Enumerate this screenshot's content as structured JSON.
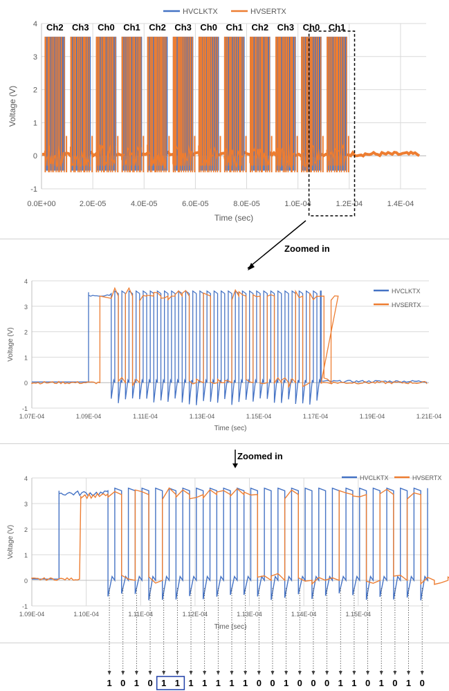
{
  "colors": {
    "clk": "#4472C4",
    "ser": "#ED7D31",
    "grid": "#D9D9D9",
    "axis": "#595959"
  },
  "chart_data": [
    {
      "type": "line",
      "x_range": [
        0,
        0.00015
      ],
      "ylim": [
        -1,
        4
      ],
      "x_ticks": [
        "0.0E+00",
        "2.0E-05",
        "4.0E-05",
        "6.0E-05",
        "8.0E-05",
        "1.0E-04",
        "1.2E-04",
        "1.4E-04"
      ],
      "y_ticks": [
        "-1",
        "0",
        "1",
        "2",
        "3",
        "4"
      ],
      "xlabel": "Time (sec)",
      "ylabel": "Voltage (V)",
      "legend": [
        "HVCLKTX",
        "HVSERTX"
      ],
      "legend_position": "top-center",
      "grid": true,
      "series": [
        {
          "name": "HVCLKTX",
          "color": "#4472C4",
          "low": 0,
          "high": 3.6
        },
        {
          "name": "HVSERTX",
          "color": "#ED7D31",
          "low": 0,
          "high": 3.6
        }
      ],
      "burst_windows": [
        {
          "label": "Ch2",
          "start": 1.2e-06,
          "end": 9.2e-06
        },
        {
          "label": "Ch3",
          "start": 1.12e-05,
          "end": 1.92e-05
        },
        {
          "label": "Ch0",
          "start": 2.12e-05,
          "end": 2.92e-05
        },
        {
          "label": "Ch1",
          "start": 3.12e-05,
          "end": 3.92e-05
        },
        {
          "label": "Ch2",
          "start": 4.12e-05,
          "end": 4.92e-05
        },
        {
          "label": "Ch3",
          "start": 5.12e-05,
          "end": 5.92e-05
        },
        {
          "label": "Ch0",
          "start": 6.12e-05,
          "end": 6.92e-05
        },
        {
          "label": "Ch1",
          "start": 7.12e-05,
          "end": 7.92e-05
        },
        {
          "label": "Ch2",
          "start": 8.12e-05,
          "end": 8.92e-05
        },
        {
          "label": "Ch3",
          "start": 9.12e-05,
          "end": 9.92e-05
        },
        {
          "label": "Ch0",
          "start": 0.0001012,
          "end": 0.0001092
        },
        {
          "label": "Ch1",
          "start": 0.0001112,
          "end": 0.0001192
        }
      ],
      "burst_labels": [
        "Ch2",
        "Ch3",
        "Ch0",
        "Ch1",
        "Ch2",
        "Ch3",
        "Ch0",
        "Ch1",
        "Ch2",
        "Ch3",
        "Ch0",
        "Ch1"
      ],
      "highlight_range": [
        0.000107,
        0.000121
      ]
    },
    {
      "type": "line",
      "x_range": [
        0.000107,
        0.000121
      ],
      "ylim": [
        -1,
        4
      ],
      "x_ticks": [
        "1.07E-04",
        "1.09E-04",
        "1.11E-04",
        "1.13E-04",
        "1.15E-04",
        "1.17E-04",
        "1.19E-04",
        "1.21E-04"
      ],
      "y_ticks": [
        "-1",
        "0",
        "1",
        "2",
        "3",
        "4"
      ],
      "xlabel": "Time (sec)",
      "ylabel": "Voltage (V)",
      "legend": [
        "HVCLKTX",
        "HVSERTX"
      ],
      "legend_position": "right",
      "grid": true,
      "clk_start": 0.000109,
      "clk_stop": 0.0001172,
      "clk_edge_start": 0.0001098,
      "clk_period": 2.5e-07,
      "ser_start": 0.0001094,
      "ser_bits": [
        1,
        0,
        1,
        0,
        1,
        1,
        1,
        1,
        1,
        1,
        1,
        0,
        0,
        1,
        0,
        0,
        0,
        1,
        1,
        0,
        1,
        0,
        1,
        0,
        0,
        0,
        1,
        0,
        1,
        1,
        0,
        1
      ]
    },
    {
      "type": "line",
      "x_range": [
        0.000109,
        0.0001163
      ],
      "ylim": [
        -1,
        4
      ],
      "x_ticks": [
        "1.09E-04",
        "1.10E-04",
        "1.11E-04",
        "1.12E-04",
        "1.13E-04",
        "1.14E-04",
        "1.15E-04"
      ],
      "y_ticks": [
        "-1",
        "0",
        "1",
        "2",
        "3",
        "4"
      ],
      "xlabel": "Time (sec)",
      "ylabel": "Voltage (V)",
      "legend": [
        "HVCLKTX",
        "HVSERTX"
      ],
      "legend_position": "top-right",
      "grid": true,
      "clk_start": 0.0001095,
      "clk_edge_start": 0.0001104,
      "clk_period": 2.5e-07,
      "ser_start": 0.0001099,
      "ser_bits": [
        1,
        0,
        1,
        0,
        1,
        1,
        1,
        1,
        1,
        1,
        1,
        0,
        0,
        1,
        0,
        0,
        0,
        1,
        1,
        0,
        1,
        0,
        1,
        0,
        0,
        0
      ],
      "decoded_bits": [
        "1",
        "0",
        "1",
        "0",
        "1",
        "1",
        "1",
        "1",
        "1",
        "1",
        "1",
        "0",
        "0",
        "1",
        "0",
        "0",
        "0",
        "1",
        "1",
        "0",
        "1",
        "0",
        "1",
        "0",
        "0",
        "0"
      ],
      "boxed_bits": [
        4,
        5
      ]
    }
  ],
  "annotations": {
    "zoom1": "Zoomed in",
    "zoom2": "Zoomed in"
  }
}
